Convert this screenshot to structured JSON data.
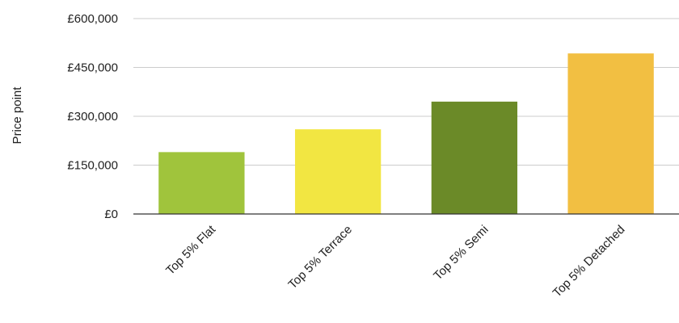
{
  "chart_data": {
    "type": "bar",
    "title": "",
    "xlabel": "",
    "ylabel": "Price point",
    "categories": [
      "Top 5% Flat",
      "Top 5% Terrace",
      "Top 5% Semi",
      "Top 5% Detached"
    ],
    "values": [
      190000,
      260000,
      345000,
      493000
    ],
    "bar_colors": [
      "#a0c43c",
      "#f2e642",
      "#6b8a28",
      "#f2bf42"
    ],
    "ylim": [
      0,
      600000
    ],
    "yticks": [
      0,
      150000,
      300000,
      450000,
      600000
    ],
    "ytick_labels": [
      "£0",
      "£150,000",
      "£300,000",
      "£450,000",
      "£600,000"
    ],
    "grid": true,
    "legend": "none"
  }
}
